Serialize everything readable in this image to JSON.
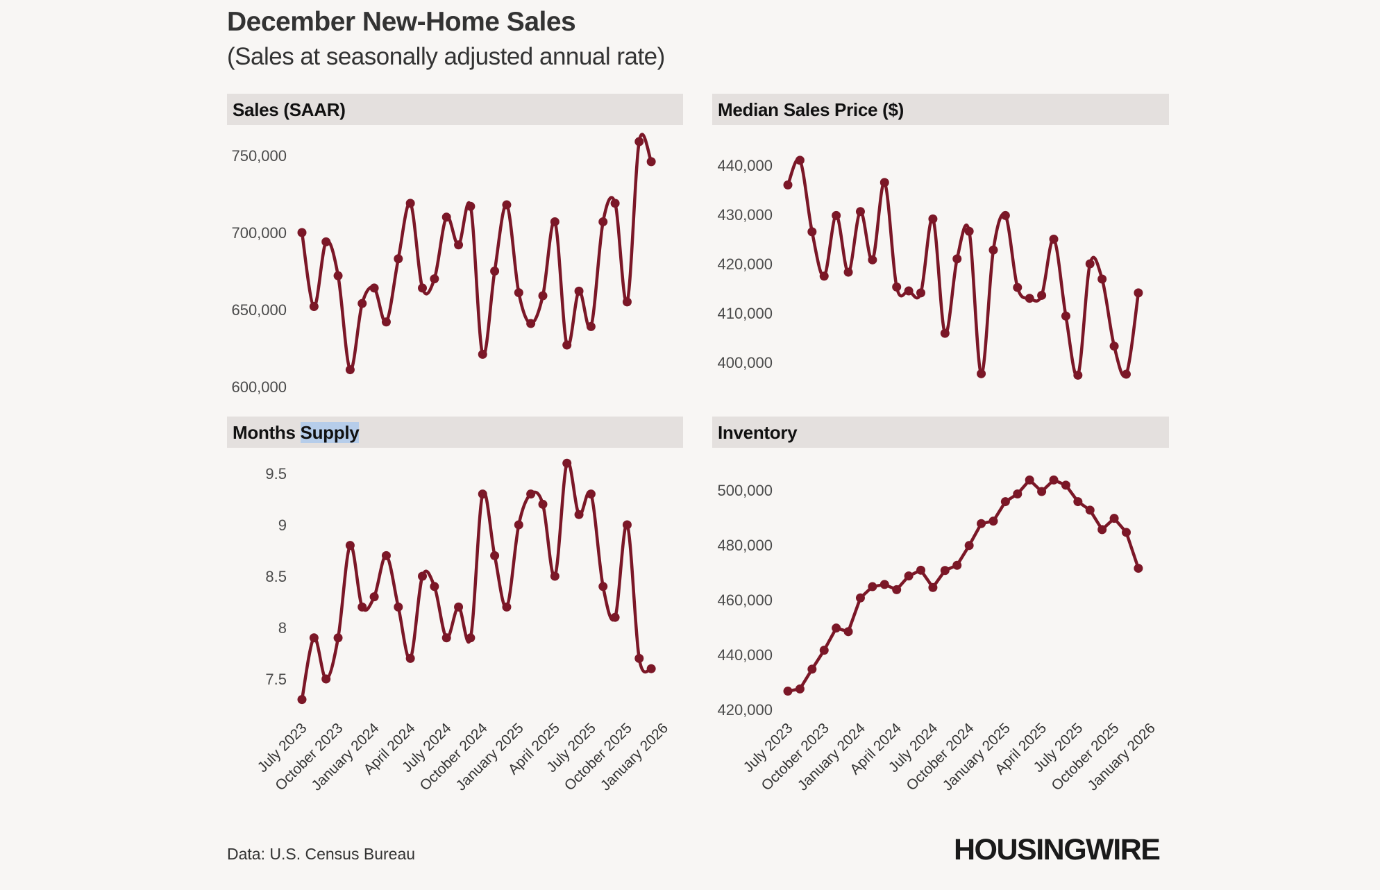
{
  "header": {
    "title": "December New-Home Sales",
    "subtitle": "(Sales at seasonally adjusted annual rate)"
  },
  "footer": {
    "source": "Data: U.S. Census Bureau",
    "logo": "HOUSINGWIRE"
  },
  "colors": {
    "line": "#7b1727",
    "band": "#e4e0de",
    "background": "#f8f6f4"
  },
  "chart_data": [
    {
      "type": "line",
      "title": "Sales (SAAR)",
      "x_start": "July 2023",
      "x_end": "December 2025",
      "x_frequency": "monthly",
      "yticks": [
        "600,000",
        "650,000",
        "700,000",
        "750,000"
      ],
      "ytick_values": [
        600000,
        650000,
        700000,
        750000
      ],
      "values": [
        700000,
        652000,
        694000,
        672000,
        611000,
        654000,
        664000,
        642000,
        683000,
        719000,
        664000,
        670000,
        710000,
        692000,
        717000,
        621000,
        675000,
        718000,
        661000,
        641000,
        659000,
        707000,
        627000,
        662000,
        639000,
        707000,
        719000,
        655000,
        759000,
        746000
      ]
    },
    {
      "type": "line",
      "title": "Median Sales Price ($)",
      "x_start": "July 2023",
      "x_end": "December 2025",
      "x_frequency": "monthly",
      "yticks": [
        "400,000",
        "410,000",
        "420,000",
        "430,000",
        "440,000"
      ],
      "ytick_values": [
        400000,
        410000,
        420000,
        430000,
        440000
      ],
      "values": [
        436000,
        441000,
        426500,
        417500,
        429800,
        418300,
        430600,
        420800,
        436500,
        415300,
        414500,
        414100,
        429100,
        405900,
        421000,
        426600,
        397700,
        422800,
        429800,
        415200,
        413000,
        413600,
        425000,
        409400,
        397400,
        420000,
        416900,
        403300,
        397600,
        414100
      ]
    },
    {
      "type": "line",
      "title_parts": [
        "Months ",
        "Supply"
      ],
      "x_start": "July 2023",
      "x_end": "December 2025",
      "x_frequency": "monthly",
      "yticks": [
        "7.5",
        "8",
        "8.5",
        "9",
        "9.5"
      ],
      "ytick_values": [
        7.5,
        8,
        8.5,
        9,
        9.5
      ],
      "xticks": [
        "July 2023",
        "October 2023",
        "January 2024",
        "April 2024",
        "July 2024",
        "October 2024",
        "January 2025",
        "April 2025",
        "July 2025",
        "October 2025",
        "January 2026"
      ],
      "values": [
        7.3,
        7.9,
        7.5,
        7.9,
        8.8,
        8.2,
        8.3,
        8.7,
        8.2,
        7.7,
        8.5,
        8.4,
        7.9,
        8.2,
        7.9,
        9.3,
        8.7,
        8.2,
        9.0,
        9.3,
        9.2,
        8.5,
        9.6,
        9.1,
        9.3,
        8.4,
        8.1,
        9.0,
        7.7,
        7.6
      ]
    },
    {
      "type": "line",
      "title": "Inventory",
      "x_start": "July 2023",
      "x_end": "December 2025",
      "x_frequency": "monthly",
      "yticks": [
        "420,000",
        "440,000",
        "460,000",
        "480,000",
        "500,000"
      ],
      "ytick_values": [
        420000,
        440000,
        460000,
        480000,
        500000
      ],
      "xticks": [
        "July 2023",
        "October 2023",
        "January 2024",
        "April 2024",
        "July 2024",
        "October 2024",
        "January 2025",
        "April 2025",
        "July 2025",
        "October 2025",
        "January 2026"
      ],
      "values": [
        426700,
        427500,
        434700,
        441600,
        449700,
        448400,
        460700,
        464800,
        465600,
        463700,
        468700,
        470800,
        464500,
        470700,
        472600,
        479800,
        487800,
        488700,
        495800,
        498600,
        503700,
        499500,
        503700,
        501800,
        495800,
        492700,
        485600,
        489700,
        484600,
        471500
      ]
    }
  ]
}
